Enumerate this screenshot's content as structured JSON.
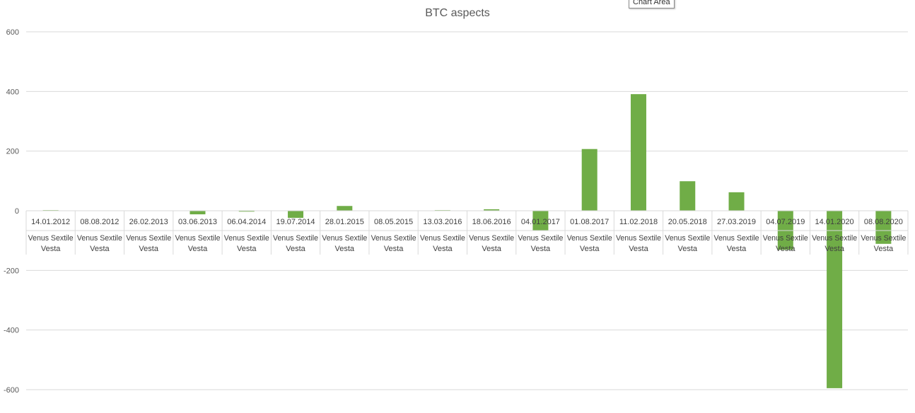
{
  "tooltip": {
    "text": "Chart Area"
  },
  "chart_data": {
    "type": "bar",
    "title": "BTC aspects",
    "xlabel": "",
    "ylabel": "",
    "ylim": [
      -600,
      600
    ],
    "yticks": [
      600,
      400,
      200,
      0,
      -200,
      -400,
      -600
    ],
    "grid": true,
    "legend": "none",
    "bar_color": "#70AD47",
    "categories": [
      {
        "date": "14.01.2012",
        "aspect": [
          "Venus Sextile",
          "Vesta"
        ]
      },
      {
        "date": "08.08.2012",
        "aspect": [
          "Venus Sextile",
          "Vesta"
        ]
      },
      {
        "date": "26.02.2013",
        "aspect": [
          "Venus Sextile",
          "Vesta"
        ]
      },
      {
        "date": "03.06.2013",
        "aspect": [
          "Venus Sextile",
          "Vesta"
        ]
      },
      {
        "date": "06.04.2014",
        "aspect": [
          "Venus Sextile",
          "Vesta"
        ]
      },
      {
        "date": "19.07.2014",
        "aspect": [
          "Venus Sextile",
          "Vesta"
        ]
      },
      {
        "date": "28.01.2015",
        "aspect": [
          "Venus Sextile",
          "Vesta"
        ]
      },
      {
        "date": "08.05.2015",
        "aspect": [
          "Venus Sextile",
          "Vesta"
        ]
      },
      {
        "date": "13.03.2016",
        "aspect": [
          "Venus Sextile",
          "Vesta"
        ]
      },
      {
        "date": "18.06.2016",
        "aspect": [
          "Venus Sextile",
          "Vesta"
        ]
      },
      {
        "date": "04.01.2017",
        "aspect": [
          "Venus Sextile",
          "Vesta"
        ]
      },
      {
        "date": "01.08.2017",
        "aspect": [
          "Venus Sextile",
          "Vesta"
        ]
      },
      {
        "date": "11.02.2018",
        "aspect": [
          "Venus Sextile",
          "Vesta"
        ]
      },
      {
        "date": "20.05.2018",
        "aspect": [
          "Venus Sextile",
          "Vesta"
        ]
      },
      {
        "date": "27.03.2019",
        "aspect": [
          "Venus Sextile",
          "Vesta"
        ]
      },
      {
        "date": "04.07.2019",
        "aspect": [
          "Venus Sextile",
          "Vesta"
        ]
      },
      {
        "date": "14.01.2020",
        "aspect": [
          "Venus Sextile",
          "Vesta"
        ]
      },
      {
        "date": "08.08.2020",
        "aspect": [
          "Venus Sextile",
          "Vesta"
        ]
      }
    ],
    "values": [
      2,
      0,
      0,
      -12,
      -3,
      -24,
      16,
      0,
      2,
      5,
      -67,
      207,
      391,
      99,
      62,
      -131,
      -595,
      -111
    ]
  }
}
